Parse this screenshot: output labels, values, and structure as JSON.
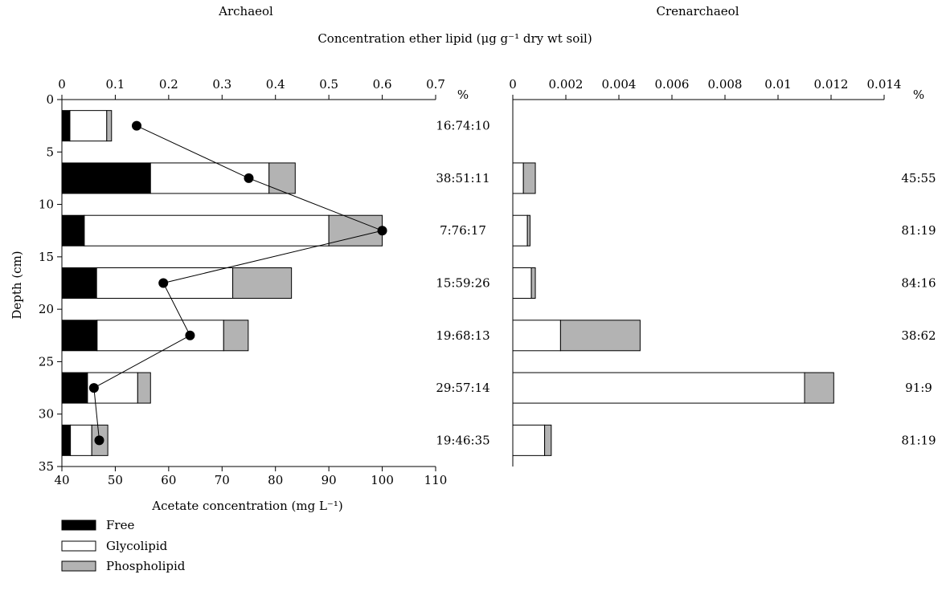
{
  "header": {
    "left_title": "Archaeol",
    "right_title": "Crenarchaeol",
    "shared_title": "Concentration ether lipid (μg g⁻¹ dry wt soil)"
  },
  "legend": [
    {
      "label": "Free",
      "color": "#000000"
    },
    {
      "label": "Glycolipid",
      "color": "#ffffff"
    },
    {
      "label": "Phospholipid",
      "color": "#b3b3b3"
    }
  ],
  "chart_data": [
    {
      "type": "bar",
      "orientation": "horizontal",
      "stacked": true,
      "title": "Archaeol",
      "x_top_ticks": [
        0,
        0.1,
        0.2,
        0.3,
        0.4,
        0.5,
        0.6,
        0.7
      ],
      "x_top_range": [
        0,
        0.7
      ],
      "x_bottom_ticks": [
        40,
        50,
        60,
        70,
        80,
        90,
        100,
        110
      ],
      "x_bottom_range": [
        40,
        110
      ],
      "x_bottom_label": "Acetate concentration (mg L⁻¹)",
      "y_label": "Depth (cm)",
      "y_ticks": [
        0,
        5,
        10,
        15,
        20,
        25,
        30,
        35
      ],
      "y_range": [
        0,
        35
      ],
      "percent_label": "%",
      "depths": [
        2.5,
        7.5,
        12.5,
        17.5,
        22.5,
        27.5,
        32.5
      ],
      "series": [
        {
          "name": "Free",
          "color": "#000000",
          "values": [
            0.015,
            0.166,
            0.042,
            0.065,
            0.066,
            0.048,
            0.016
          ]
        },
        {
          "name": "Glycolipid",
          "color": "#ffffff",
          "values": [
            0.069,
            0.222,
            0.458,
            0.255,
            0.237,
            0.094,
            0.04
          ]
        },
        {
          "name": "Phospholipid",
          "color": "#b3b3b3",
          "values": [
            0.009,
            0.049,
            0.1,
            0.11,
            0.046,
            0.024,
            0.03
          ]
        }
      ],
      "percent_labels": [
        "16:74:10",
        "38:51:11",
        "7:76:17",
        "15:59:26",
        "19:68:13",
        "29:57:14",
        "19:46:35"
      ],
      "acetate_line": {
        "name": "Acetate concentration",
        "points": [
          {
            "depth": 2.5,
            "value": 54
          },
          {
            "depth": 7.5,
            "value": 75
          },
          {
            "depth": 12.5,
            "value": 100
          },
          {
            "depth": 17.5,
            "value": 59
          },
          {
            "depth": 22.5,
            "value": 64
          },
          {
            "depth": 27.5,
            "value": 46
          },
          {
            "depth": 32.5,
            "value": 47
          }
        ]
      }
    },
    {
      "type": "bar",
      "orientation": "horizontal",
      "stacked": true,
      "title": "Crenarchaeol",
      "x_top_ticks": [
        0,
        0.002,
        0.004,
        0.006,
        0.008,
        0.01,
        0.012,
        0.014
      ],
      "x_top_tick_labels": [
        "0",
        "0.002",
        "0.004",
        "0.006",
        "0.008",
        "0.01",
        "0.012",
        "0.014"
      ],
      "x_top_range": [
        0,
        0.014
      ],
      "y_range": [
        0,
        35
      ],
      "percent_label": "%",
      "depths": [
        7.5,
        12.5,
        17.5,
        22.5,
        27.5,
        32.5
      ],
      "series": [
        {
          "name": "Glycolipid",
          "color": "#ffffff",
          "values": [
            0.0004,
            0.00055,
            0.0007,
            0.0018,
            0.011,
            0.0012
          ]
        },
        {
          "name": "Phospholipid",
          "color": "#b3b3b3",
          "values": [
            0.00045,
            0.0001,
            0.00015,
            0.003,
            0.0011,
            0.00025
          ]
        }
      ],
      "percent_labels": [
        "45:55",
        "81:19",
        "84:16",
        "38:62",
        "91:9",
        "81:19"
      ]
    }
  ]
}
